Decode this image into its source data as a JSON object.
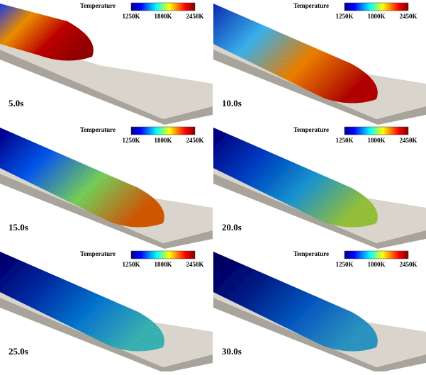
{
  "panels": [
    {
      "time": "5.0s",
      "legend": {
        "title": "Temperature",
        "ticks": [
          "1250K",
          "1800K",
          "2450K"
        ]
      }
    },
    {
      "time": "10.0s",
      "legend": {
        "title": "Temperature",
        "ticks": [
          "1250K",
          "1800K",
          "2450K"
        ]
      }
    },
    {
      "time": "15.0s",
      "legend": {
        "title": "Temperature",
        "ticks": [
          "1250K",
          "1800K",
          "2450K"
        ]
      }
    },
    {
      "time": "20.0s",
      "legend": {
        "title": "Temperature",
        "ticks": [
          "1250K",
          "1800K",
          "2450K"
        ]
      }
    },
    {
      "time": "25.0s",
      "legend": {
        "title": "Temperature",
        "ticks": [
          "1250K",
          "1800K",
          "2450K"
        ]
      }
    },
    {
      "time": "30.0s",
      "legend": {
        "title": "Temperature",
        "ticks": [
          "1250K",
          "1800K",
          "2450K"
        ]
      }
    }
  ]
}
